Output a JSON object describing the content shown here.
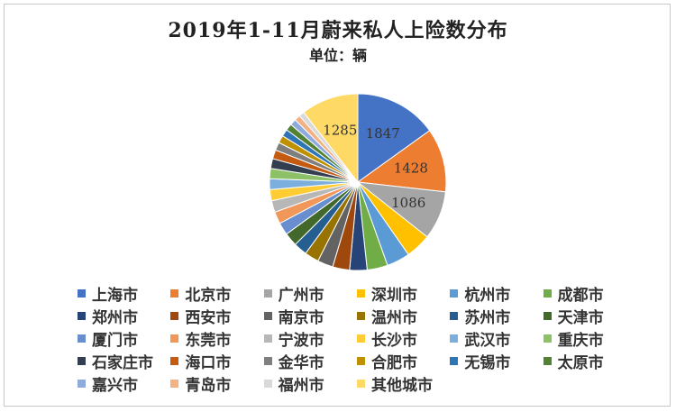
{
  "chart_data": {
    "type": "pie",
    "title": "2019年1-11月蔚来私人上险数分布",
    "subtitle": "单位：辆",
    "legend_position": "bottom",
    "categories": [
      "上海市",
      "北京市",
      "广州市",
      "深圳市",
      "杭州市",
      "成都市",
      "郑州市",
      "西安市",
      "南京市",
      "温州市",
      "苏州市",
      "天津市",
      "厦门市",
      "东莞市",
      "宁波市",
      "长沙市",
      "武汉市",
      "重庆市",
      "石家庄市",
      "海口市",
      "金华市",
      "合肥市",
      "无锡市",
      "太原市",
      "嘉兴市",
      "青岛市",
      "福州市",
      "其他城市"
    ],
    "values": [
      1847,
      1428,
      1086,
      570,
      520,
      460,
      390,
      380,
      350,
      320,
      300,
      300,
      280,
      270,
      260,
      250,
      240,
      230,
      220,
      200,
      180,
      170,
      160,
      150,
      140,
      130,
      120,
      1285
    ],
    "data_labels": [
      "1847",
      "1428",
      "1086",
      "",
      "",
      "",
      "",
      "",
      "",
      "",
      "",
      "",
      "",
      "",
      "",
      "",
      "",
      "",
      "",
      "",
      "",
      "",
      "",
      "",
      "",
      "",
      "",
      "1285"
    ],
    "colors": [
      "#4472C4",
      "#ED7D31",
      "#A5A5A5",
      "#FFC000",
      "#5B9BD5",
      "#70AD47",
      "#264478",
      "#9E480E",
      "#636363",
      "#997300",
      "#255E91",
      "#43682B",
      "#698ED0",
      "#F1975A",
      "#B7B7B7",
      "#FFCD33",
      "#7CAFDD",
      "#8CC168",
      "#333F50",
      "#C55A11",
      "#7F7F7F",
      "#BF9000",
      "#2E75B6",
      "#548235",
      "#8FAADC",
      "#F4B183",
      "#D9D9D9",
      "#FFD966"
    ]
  }
}
